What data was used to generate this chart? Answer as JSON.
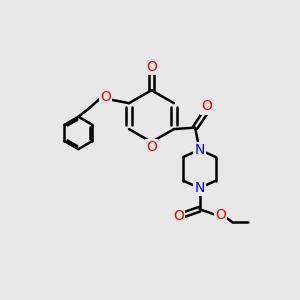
{
  "bg_color": "#e8e8e8",
  "bond_color": "#000000",
  "bond_width": 1.8,
  "atom_colors": {
    "O": "#ff0000",
    "N": "#0000ff"
  },
  "font_size": 10,
  "fig_size": [
    3.0,
    3.0
  ],
  "dpi": 100
}
